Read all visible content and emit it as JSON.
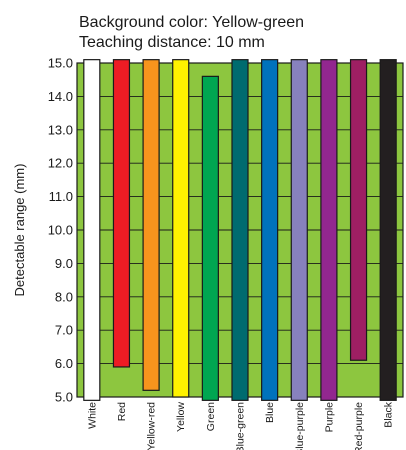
{
  "chart_data": {
    "type": "bar",
    "title_lines": [
      "Background color: Yellow-green",
      "Teaching distance: 10 mm"
    ],
    "ylabel": "Detectable range (mm)",
    "xlabel": "",
    "ylim": [
      5.0,
      15.0
    ],
    "yticks": [
      "5.0",
      "6.0",
      "7.0",
      "8.0",
      "9.0",
      "10.0",
      "11.0",
      "12.0",
      "13.0",
      "14.0",
      "15.0"
    ],
    "grid": true,
    "background_color": "#8dc63f",
    "categories": [
      "White",
      "Red",
      "Yellow-red",
      "Yellow",
      "Green",
      "Blue-green",
      "Blue",
      "Blue-purple",
      "Purple",
      "Red-purple",
      "Black"
    ],
    "ranges": [
      [
        4.9,
        15.1
      ],
      [
        5.9,
        15.1
      ],
      [
        5.2,
        15.1
      ],
      [
        5.0,
        15.1
      ],
      [
        4.9,
        14.6
      ],
      [
        4.9,
        15.1
      ],
      [
        4.9,
        15.1
      ],
      [
        4.9,
        15.1
      ],
      [
        4.9,
        15.1
      ],
      [
        6.1,
        15.1
      ],
      [
        4.9,
        15.1
      ]
    ],
    "colors": [
      "#ffffff",
      "#ed1c24",
      "#f7941d",
      "#fff200",
      "#00a651",
      "#006b6f",
      "#0072bc",
      "#8781bd",
      "#92278f",
      "#9e1f63",
      "#231f20"
    ]
  }
}
